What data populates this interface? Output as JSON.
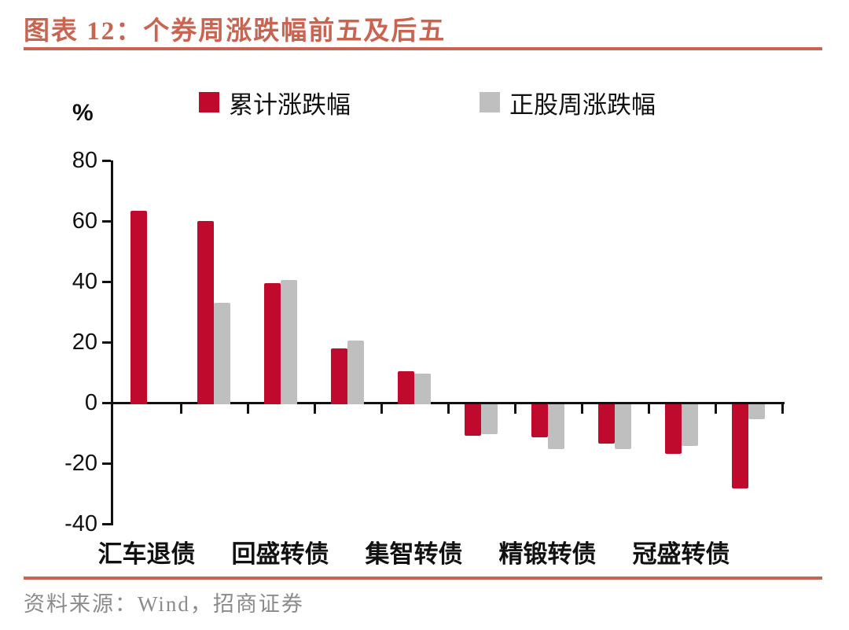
{
  "header": {
    "title": "图表 12：个券周涨跌幅前五及后五"
  },
  "footer": {
    "source": "资料来源：Wind，招商证券"
  },
  "colors": {
    "accent": "#C96450",
    "bar_red": "#C00A2D",
    "bar_gray": "#BFBFBF",
    "axis_black": "#111111",
    "source_gray": "#8B8B8B"
  },
  "chart_data": {
    "type": "bar",
    "title": "个券周涨跌幅前五及后五",
    "unit_label": "%",
    "ylabel": "%",
    "xlabel": "",
    "ylim": [
      -40,
      80
    ],
    "yticks": [
      80,
      60,
      40,
      20,
      0,
      -20,
      -40
    ],
    "grid": false,
    "legend_position": "top",
    "categories": [
      "汇车退债",
      "",
      "回盛转债",
      "",
      "集智转债",
      "",
      "精锻转债",
      "",
      "冠盛转债",
      ""
    ],
    "xtick_labels_visible": [
      "汇车退债",
      "回盛转债",
      "集智转债",
      "精锻转债",
      "冠盛转债"
    ],
    "series": [
      {
        "name": "累计涨跌幅",
        "color": "#C00A2D",
        "values": [
          63.5,
          60,
          39.5,
          18,
          10.5,
          -10.5,
          -11,
          -13,
          -16.5,
          -28
        ]
      },
      {
        "name": "正股周涨跌幅",
        "color": "#BFBFBF",
        "values": [
          null,
          33,
          40.5,
          20.5,
          9.5,
          -10,
          -15,
          -15,
          -14,
          -5
        ]
      }
    ]
  }
}
